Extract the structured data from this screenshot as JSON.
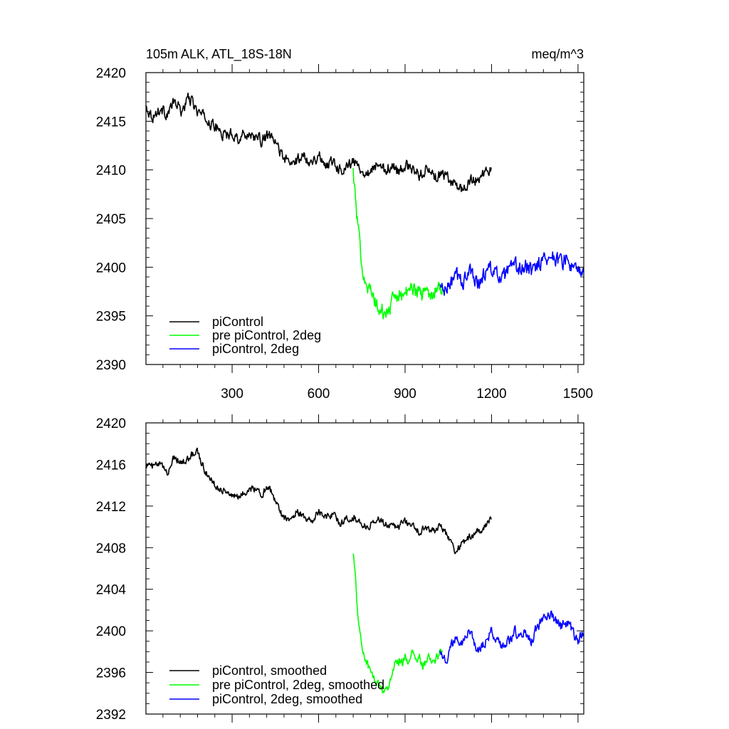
{
  "chart_data": [
    {
      "type": "line",
      "title_left": "105m ALK, ATL_18S-18N",
      "title_right": "meq/m^3",
      "xlim": [
        1,
        1520
      ],
      "ylim": [
        2390,
        2420
      ],
      "x_ticks": [
        300,
        600,
        900,
        1200,
        1500
      ],
      "x_ticks_labeled": true,
      "y_ticks": [
        2390,
        2395,
        2400,
        2405,
        2410,
        2415,
        2420
      ],
      "y_minor_step": 1,
      "grid": false,
      "legend_position": "bottom-left",
      "series": [
        {
          "name": "piControl",
          "color": "#000000",
          "x": [
            1,
            25,
            50,
            75,
            100,
            125,
            150,
            175,
            200,
            225,
            250,
            275,
            300,
            325,
            350,
            375,
            400,
            425,
            450,
            475,
            500,
            525,
            550,
            575,
            600,
            625,
            650,
            675,
            700,
            725,
            750,
            775,
            800,
            825,
            850,
            875,
            900,
            925,
            950,
            975,
            1000,
            1025,
            1050,
            1075,
            1100,
            1125,
            1150,
            1175,
            1200
          ],
          "y": [
            2416.5,
            2415.5,
            2416.2,
            2415.8,
            2417.0,
            2416.0,
            2417.5,
            2416.2,
            2415.5,
            2414.8,
            2414.2,
            2413.5,
            2413.8,
            2413.2,
            2413.8,
            2413.5,
            2413.0,
            2413.5,
            2412.8,
            2411.5,
            2410.5,
            2411.0,
            2411.5,
            2410.8,
            2411.5,
            2410.5,
            2411.0,
            2410.0,
            2410.5,
            2410.8,
            2410.0,
            2409.8,
            2410.5,
            2410.0,
            2410.5,
            2409.8,
            2410.5,
            2410.0,
            2409.5,
            2410.2,
            2409.2,
            2409.5,
            2409.0,
            2408.5,
            2408.0,
            2408.8,
            2409.0,
            2409.8,
            2410.0
          ],
          "noise": 0.9
        },
        {
          "name": "pre piControl, 2deg",
          "color": "#00ff00",
          "x": [
            720,
            730,
            740,
            750,
            760,
            770,
            780,
            790,
            800,
            810,
            820,
            830,
            840,
            850,
            860,
            870,
            880,
            890,
            900,
            910,
            920,
            930,
            940,
            950,
            960,
            970,
            980,
            990,
            1000,
            1010,
            1020,
            1030
          ],
          "y": [
            2410.0,
            2406.0,
            2403.0,
            2400.5,
            2399.0,
            2398.0,
            2397.5,
            2396.8,
            2396.2,
            2395.5,
            2395.5,
            2395.0,
            2395.5,
            2396.0,
            2396.8,
            2397.2,
            2397.5,
            2397.0,
            2397.5,
            2397.2,
            2397.8,
            2398.0,
            2397.5,
            2397.8,
            2397.0,
            2397.5,
            2397.5,
            2397.2,
            2397.5,
            2398.0,
            2397.8,
            2398.0
          ],
          "noise": 1.2
        },
        {
          "name": "piControl, 2deg",
          "color": "#0000ff",
          "x": [
            1020,
            1040,
            1060,
            1080,
            1100,
            1120,
            1140,
            1160,
            1180,
            1200,
            1220,
            1240,
            1260,
            1280,
            1300,
            1320,
            1340,
            1360,
            1380,
            1400,
            1420,
            1440,
            1460,
            1480,
            1500,
            1520
          ],
          "y": [
            2398.0,
            2397.5,
            2398.5,
            2399.0,
            2398.5,
            2399.5,
            2399.0,
            2398.5,
            2399.5,
            2400.0,
            2399.0,
            2398.8,
            2399.5,
            2400.0,
            2399.8,
            2400.0,
            2399.5,
            2400.5,
            2400.8,
            2401.2,
            2401.0,
            2400.5,
            2400.8,
            2400.0,
            2399.2,
            2399.8
          ],
          "noise": 1.3
        }
      ]
    },
    {
      "type": "line",
      "xlim": [
        1,
        1520
      ],
      "ylim": [
        2392,
        2420
      ],
      "x_ticks": [
        300,
        600,
        900,
        1200,
        1500
      ],
      "x_ticks_labeled": false,
      "y_ticks": [
        2392,
        2396,
        2400,
        2404,
        2408,
        2412,
        2416,
        2420
      ],
      "y_minor_step": 1,
      "grid": false,
      "legend_position": "bottom-left",
      "series": [
        {
          "name": "piControl, smoothed",
          "color": "#000000",
          "x": [
            1,
            25,
            50,
            75,
            100,
            125,
            150,
            175,
            200,
            225,
            250,
            275,
            300,
            325,
            350,
            375,
            400,
            425,
            450,
            475,
            500,
            525,
            550,
            575,
            600,
            625,
            650,
            675,
            700,
            725,
            750,
            775,
            800,
            825,
            850,
            875,
            900,
            925,
            950,
            975,
            1000,
            1025,
            1050,
            1075,
            1100,
            1125,
            1150,
            1175,
            1200
          ],
          "y": [
            2416.0,
            2415.8,
            2416.0,
            2415.2,
            2416.8,
            2416.2,
            2416.5,
            2417.5,
            2415.8,
            2414.5,
            2413.8,
            2413.5,
            2413.0,
            2412.8,
            2413.5,
            2413.8,
            2413.0,
            2414.0,
            2412.5,
            2411.0,
            2410.8,
            2411.5,
            2411.0,
            2410.5,
            2411.5,
            2411.0,
            2411.2,
            2410.2,
            2410.8,
            2411.0,
            2410.2,
            2410.0,
            2410.8,
            2410.5,
            2410.2,
            2410.0,
            2410.5,
            2410.2,
            2409.5,
            2410.0,
            2409.5,
            2410.2,
            2409.0,
            2407.5,
            2408.5,
            2409.0,
            2409.5,
            2410.0,
            2410.8
          ],
          "noise": 0.55
        },
        {
          "name": "pre piControl, 2deg, smoothed",
          "color": "#00ff00",
          "x": [
            720,
            730,
            740,
            750,
            760,
            770,
            780,
            790,
            800,
            810,
            820,
            830,
            840,
            850,
            860,
            870,
            880,
            890,
            900,
            910,
            920,
            930,
            940,
            950,
            960,
            970,
            980,
            990,
            1000,
            1010,
            1020,
            1030
          ],
          "y": [
            2407.8,
            2404.0,
            2400.5,
            2398.5,
            2397.5,
            2396.8,
            2396.0,
            2395.5,
            2395.0,
            2394.8,
            2394.5,
            2394.2,
            2394.5,
            2395.5,
            2396.5,
            2397.0,
            2397.2,
            2397.0,
            2397.5,
            2397.2,
            2397.6,
            2397.8,
            2397.0,
            2397.5,
            2396.5,
            2397.0,
            2397.5,
            2396.8,
            2397.0,
            2397.5,
            2397.8,
            2398.0
          ],
          "noise": 0.7
        },
        {
          "name": "piControl, 2deg, smoothed",
          "color": "#0000ff",
          "x": [
            1020,
            1040,
            1060,
            1080,
            1100,
            1120,
            1140,
            1160,
            1180,
            1200,
            1220,
            1240,
            1260,
            1280,
            1300,
            1320,
            1340,
            1360,
            1380,
            1400,
            1420,
            1440,
            1460,
            1480,
            1500,
            1520
          ],
          "y": [
            2398.5,
            2397.0,
            2398.5,
            2399.5,
            2399.0,
            2400.0,
            2398.8,
            2398.0,
            2399.0,
            2400.0,
            2398.8,
            2398.5,
            2399.0,
            2400.0,
            2399.5,
            2399.8,
            2399.0,
            2400.5,
            2401.0,
            2401.8,
            2401.0,
            2400.5,
            2400.8,
            2400.0,
            2399.0,
            2399.8
          ],
          "noise": 0.8
        }
      ]
    }
  ]
}
